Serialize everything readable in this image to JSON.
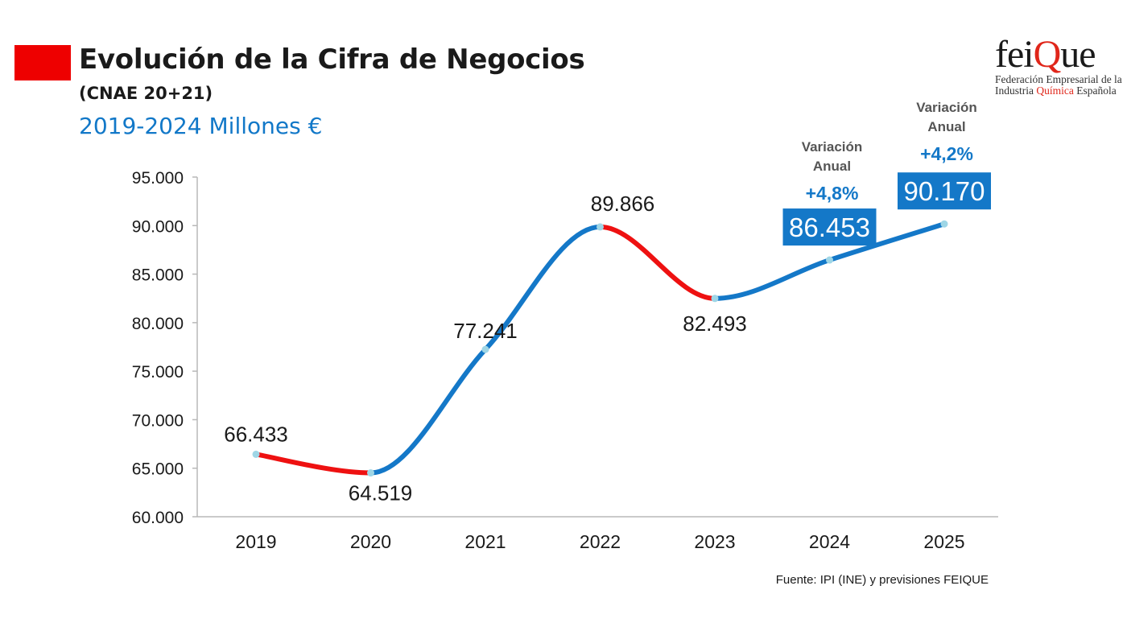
{
  "header": {
    "title": "Evolución de la Cifra de Negocios",
    "subtitle": "(CNAE 20+21)",
    "period": "2019-2024 Millones €"
  },
  "logo": {
    "word_pre": "fei",
    "word_q": "Q",
    "word_post": "ue",
    "line1": "Federación Empresarial de la",
    "line2_pre": "Industria ",
    "line2_hl": "Química",
    "line2_post": " Española"
  },
  "footer": {
    "source": "Fuente: IPI (INE) y previsiones FEIQUE"
  },
  "colors": {
    "rise": "#1478c8",
    "fall": "#ee1111",
    "marker": "#9fd6e6",
    "highlight_box": "#1478c8"
  },
  "chart_data": {
    "type": "line",
    "categories": [
      "2019",
      "2020",
      "2021",
      "2022",
      "2023",
      "2024",
      "2025"
    ],
    "values": [
      66433,
      64519,
      77241,
      89866,
      82493,
      86453,
      90170
    ],
    "data_labels": [
      "66.433",
      "64.519",
      "77.241",
      "89.866",
      "82.493",
      "86.453",
      "90.170"
    ],
    "highlighted": [
      false,
      false,
      false,
      false,
      false,
      true,
      true
    ],
    "ylim": [
      60000,
      95000
    ],
    "yticks": [
      60000,
      65000,
      70000,
      75000,
      80000,
      85000,
      90000,
      95000
    ],
    "ytick_labels": [
      "60.000",
      "65.000",
      "70.000",
      "75.000",
      "80.000",
      "85.000",
      "90.000",
      "95.000"
    ],
    "segment_colors": [
      "fall",
      "rise",
      "rise",
      "fall",
      "rise",
      "rise"
    ],
    "grid": false,
    "annotations": [
      {
        "category": "2024",
        "label": "Variación\nAnual",
        "value": "+4,8%"
      },
      {
        "category": "2025",
        "label": "Variación\nAnual",
        "value": "+4,2%"
      }
    ]
  }
}
